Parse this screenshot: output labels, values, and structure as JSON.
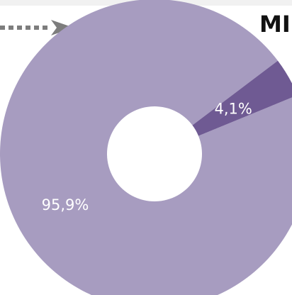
{
  "title": "MI",
  "chart_data": {
    "type": "pie",
    "title": "MI",
    "categories": [
      "",
      ""
    ],
    "values": [
      95.9,
      4.1
    ],
    "labels": [
      "95,9%",
      "4,1%"
    ],
    "colors": [
      "#a79cc0",
      "#6f5a93"
    ],
    "donut": true
  }
}
